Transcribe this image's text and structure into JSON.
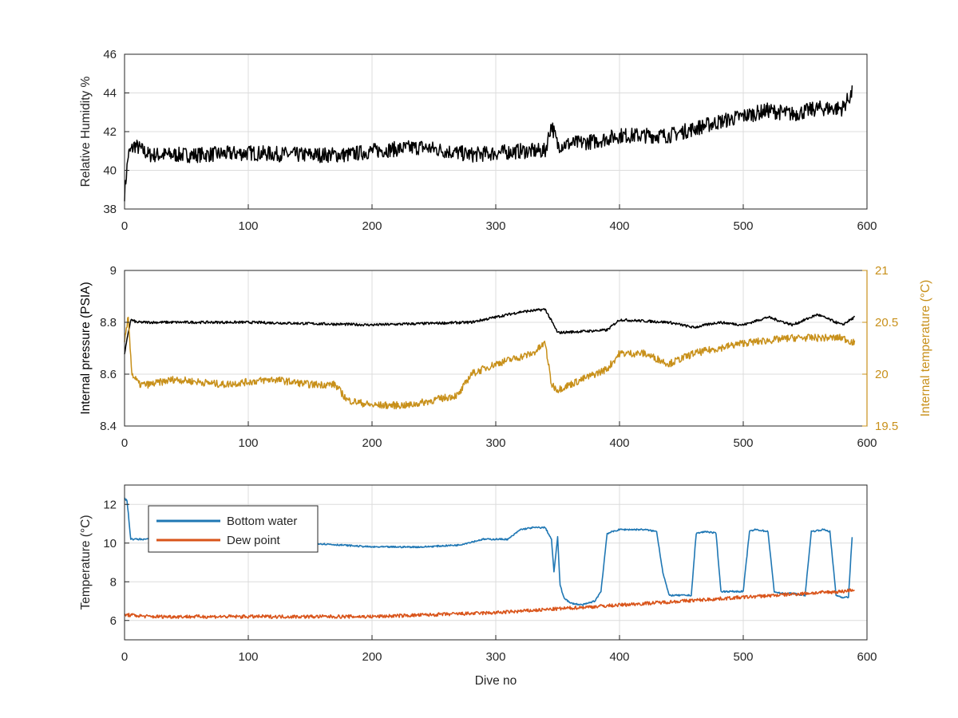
{
  "colors": {
    "black": "#000000",
    "gold": "#c8901a",
    "blue": "#1f77b4",
    "orange": "#d9541a",
    "grid": "#dcdcdc",
    "axis": "#262626"
  },
  "chart_data": [
    {
      "type": "line",
      "xlabel": "",
      "ylabel": "Relative Humidity %",
      "xlim": [
        0,
        600
      ],
      "ylim": [
        38,
        46
      ],
      "xticks": [
        0,
        100,
        200,
        300,
        400,
        500,
        600
      ],
      "yticks": [
        38,
        40,
        42,
        44,
        46
      ],
      "grid": true,
      "series": [
        {
          "color": "#000000",
          "noise": 0.8,
          "x": [
            0,
            3,
            8,
            20,
            60,
            100,
            140,
            180,
            200,
            240,
            280,
            300,
            320,
            340,
            345,
            350,
            380,
            400,
            440,
            480,
            520,
            540,
            560,
            580,
            588
          ],
          "y": [
            38.8,
            40.8,
            41.3,
            40.8,
            40.8,
            40.9,
            40.8,
            40.8,
            41.0,
            41.2,
            40.8,
            40.9,
            41.0,
            41.0,
            42.4,
            41.3,
            41.5,
            41.8,
            41.8,
            42.5,
            43.1,
            42.9,
            43.2,
            43.2,
            44.0
          ]
        }
      ]
    },
    {
      "type": "line",
      "xlabel": "",
      "ylabel": "Internal pressure (PSIA)",
      "ylabel_right": "Internal temperature (°C)",
      "xlim": [
        0,
        600
      ],
      "ylim": [
        8.4,
        9
      ],
      "ylim_right": [
        19.5,
        21
      ],
      "xticks": [
        0,
        100,
        200,
        300,
        400,
        500,
        600
      ],
      "yticks": [
        8.4,
        8.6,
        8.8,
        9
      ],
      "yticks_right": [
        19.5,
        20,
        20.5,
        21
      ],
      "grid": true,
      "series": [
        {
          "axis": "left",
          "color": "#000000",
          "noise": 0.01,
          "x": [
            0,
            5,
            10,
            100,
            200,
            280,
            300,
            320,
            340,
            350,
            390,
            400,
            440,
            460,
            480,
            500,
            520,
            540,
            560,
            580,
            590
          ],
          "y": [
            8.68,
            8.81,
            8.8,
            8.8,
            8.79,
            8.8,
            8.82,
            8.84,
            8.85,
            8.76,
            8.77,
            8.81,
            8.8,
            8.78,
            8.8,
            8.79,
            8.82,
            8.79,
            8.83,
            8.79,
            8.82
          ]
        },
        {
          "axis": "right",
          "color": "#c8901a",
          "noise": 0.07,
          "x": [
            0,
            3,
            6,
            12,
            20,
            40,
            80,
            120,
            150,
            170,
            180,
            200,
            230,
            270,
            280,
            300,
            330,
            340,
            345,
            350,
            360,
            390,
            400,
            420,
            440,
            460,
            500,
            540,
            580,
            590
          ],
          "y": [
            20.3,
            20.55,
            20.0,
            19.9,
            19.9,
            19.95,
            19.9,
            19.95,
            19.9,
            19.9,
            19.75,
            19.7,
            19.7,
            19.8,
            20.0,
            20.1,
            20.2,
            20.3,
            19.9,
            19.85,
            19.9,
            20.05,
            20.2,
            20.2,
            20.1,
            20.2,
            20.3,
            20.35,
            20.35,
            20.3
          ]
        }
      ]
    },
    {
      "type": "line",
      "xlabel": "Dive no",
      "ylabel": "Temperature (°C)",
      "xlim": [
        0,
        600
      ],
      "ylim": [
        5,
        13
      ],
      "xticks": [
        0,
        100,
        200,
        300,
        400,
        500,
        600
      ],
      "yticks": [
        6,
        8,
        10,
        12
      ],
      "grid": true,
      "legend": "top-left",
      "series": [
        {
          "name": "Bottom water",
          "color": "#1f77b4",
          "noise": 0.08,
          "x": [
            0,
            2,
            5,
            8,
            20,
            100,
            150,
            200,
            240,
            270,
            290,
            300,
            310,
            320,
            330,
            340,
            345,
            347,
            350,
            352,
            355,
            360,
            370,
            380,
            385,
            390,
            395,
            400,
            420,
            430,
            435,
            440,
            450,
            458,
            462,
            470,
            478,
            482,
            490,
            500,
            505,
            510,
            520,
            525,
            530,
            540,
            550,
            555,
            565,
            570,
            575,
            580,
            585,
            588
          ],
          "y": [
            12.3,
            12.2,
            10.2,
            10.2,
            10.2,
            10.1,
            10.0,
            9.8,
            9.8,
            9.9,
            10.2,
            10.2,
            10.2,
            10.7,
            10.8,
            10.8,
            10.2,
            8.5,
            10.3,
            7.8,
            7.2,
            6.9,
            6.8,
            7.0,
            7.5,
            10.5,
            10.6,
            10.7,
            10.7,
            10.6,
            8.5,
            7.3,
            7.3,
            7.3,
            10.5,
            10.6,
            10.5,
            7.5,
            7.5,
            7.5,
            10.6,
            10.7,
            10.6,
            7.5,
            7.4,
            7.4,
            7.3,
            10.6,
            10.7,
            10.6,
            7.3,
            7.2,
            7.2,
            10.3
          ]
        },
        {
          "name": "Dew point",
          "color": "#d9541a",
          "noise": 0.18,
          "x": [
            0,
            20,
            100,
            200,
            250,
            300,
            350,
            400,
            450,
            500,
            550,
            580,
            590
          ],
          "y": [
            6.3,
            6.2,
            6.2,
            6.2,
            6.3,
            6.4,
            6.6,
            6.8,
            7.0,
            7.2,
            7.4,
            7.5,
            7.6
          ]
        }
      ]
    }
  ]
}
